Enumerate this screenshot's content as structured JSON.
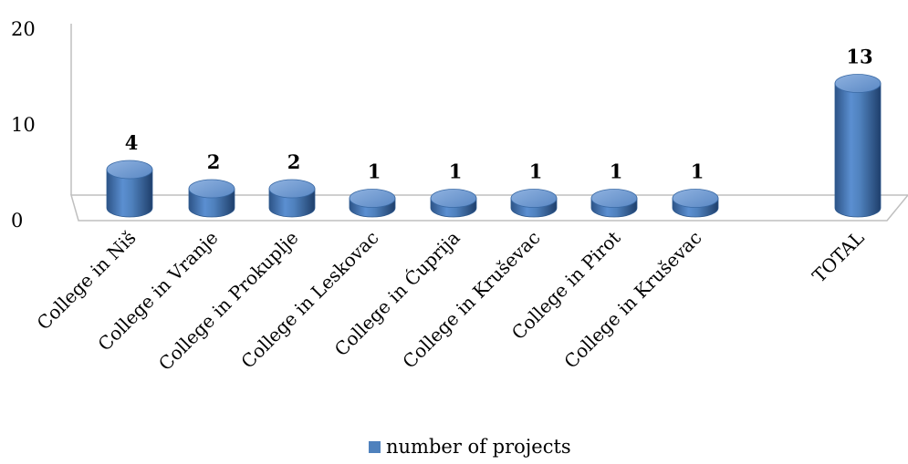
{
  "chart_data": {
    "type": "bar",
    "style": "3d-cylinder",
    "categories": [
      "College in Niš",
      "College in Vranje",
      "College in Prokuplje",
      "College in Leskovac",
      "College in Ćuprija",
      "College in Kruševac",
      "College in Pirot",
      "College in Kruševac",
      "TOTAL"
    ],
    "series": [
      {
        "name": "number of projects",
        "color": "#4f81bd",
        "values": [
          4,
          2,
          2,
          1,
          1,
          1,
          1,
          1,
          13
        ]
      }
    ],
    "ylim": [
      0,
      20
    ],
    "yticks": [
      0,
      10,
      20
    ],
    "grid": false,
    "legend": "bottom",
    "data_labels": true
  }
}
